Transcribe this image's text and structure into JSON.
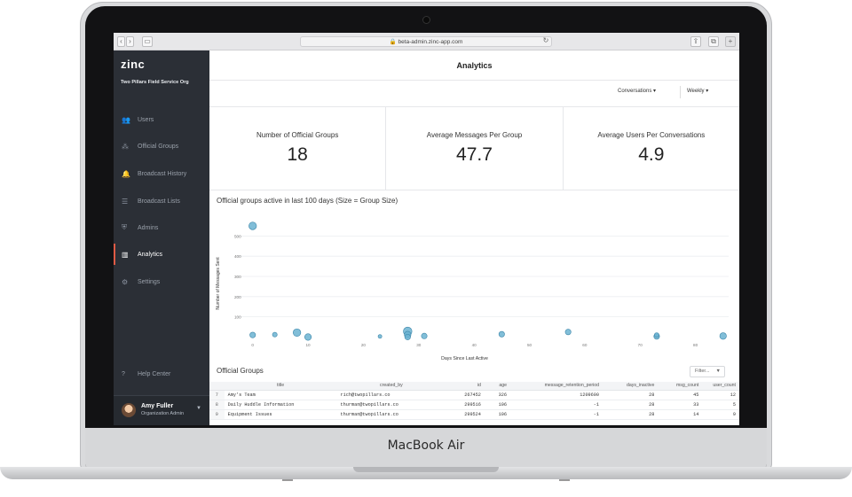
{
  "browser": {
    "url": "beta-admin.zinc-app.com"
  },
  "sidebar": {
    "logo": "zinc",
    "org": "Two Pillars Field Service Org",
    "items": [
      {
        "label": "Users",
        "icon": "users-icon",
        "active": false
      },
      {
        "label": "Official Groups",
        "icon": "groups-icon",
        "active": false
      },
      {
        "label": "Broadcast History",
        "icon": "bell-icon",
        "active": false
      },
      {
        "label": "Broadcast Lists",
        "icon": "list-icon",
        "active": false
      },
      {
        "label": "Admins",
        "icon": "shield-icon",
        "active": false
      },
      {
        "label": "Analytics",
        "icon": "chart-icon",
        "active": true
      },
      {
        "label": "Settings",
        "icon": "gear-icon",
        "active": false
      }
    ],
    "help": "Help Center",
    "user": {
      "name": "Amy Fuller",
      "role": "Organization Admin"
    }
  },
  "page": {
    "title": "Analytics",
    "filters": {
      "type": "Conversations",
      "period": "Weekly"
    }
  },
  "kpis": [
    {
      "label": "Number of Official Groups",
      "value": "18"
    },
    {
      "label": "Average Messages Per Group",
      "value": "47.7"
    },
    {
      "label": "Average Users Per Conversations",
      "value": "4.9"
    }
  ],
  "chart_section": {
    "title": "Official groups active in last 100 days (Size = Group Size)"
  },
  "chart_data": {
    "type": "scatter",
    "xlabel": "Days Since Last Active",
    "ylabel": "Number of Messages Sent",
    "xlim": [
      -3,
      86
    ],
    "ylim": [
      -20,
      620
    ],
    "xticks": [
      0,
      10,
      20,
      30,
      40,
      50,
      60,
      70,
      80
    ],
    "yticks": [
      100,
      200,
      300,
      400,
      500
    ],
    "grid": true,
    "points": [
      {
        "x": 0,
        "y": 550,
        "size": 6
      },
      {
        "x": 0,
        "y": 10,
        "size": 4
      },
      {
        "x": 4,
        "y": 12,
        "size": 3
      },
      {
        "x": 8,
        "y": 22,
        "size": 6
      },
      {
        "x": 10,
        "y": 0,
        "size": 5
      },
      {
        "x": 23,
        "y": 3,
        "size": 2
      },
      {
        "x": 28,
        "y": 28,
        "size": 7
      },
      {
        "x": 28,
        "y": 12,
        "size": 5
      },
      {
        "x": 28,
        "y": 0,
        "size": 4
      },
      {
        "x": 31,
        "y": 5,
        "size": 4
      },
      {
        "x": 45,
        "y": 14,
        "size": 4
      },
      {
        "x": 57,
        "y": 25,
        "size": 4
      },
      {
        "x": 73,
        "y": 3,
        "size": 4
      },
      {
        "x": 73,
        "y": 10,
        "size": 3
      },
      {
        "x": 85,
        "y": 5,
        "size": 5
      }
    ]
  },
  "groups_table": {
    "title": "Official Groups",
    "filter_placeholder": "Filter...",
    "columns": [
      "title",
      "created_by",
      "id",
      "age",
      "message_retention_period",
      "days_inactive",
      "msg_count",
      "user_count"
    ],
    "rows": [
      {
        "index": "7",
        "cells": [
          "Amy's Team",
          "rich@twopillars.co",
          "267452",
          "326",
          "1209600",
          "28",
          "45",
          "12"
        ]
      },
      {
        "index": "8",
        "cells": [
          "Daily Huddle Information",
          "thurman@twopillars.co",
          "299516",
          "106",
          "-1",
          "28",
          "33",
          "5"
        ]
      },
      {
        "index": "9",
        "cells": [
          "Equipment Issues",
          "thurman@twopillars.co",
          "299524",
          "106",
          "-1",
          "28",
          "14",
          "9"
        ]
      }
    ]
  },
  "device": {
    "brand": "MacBook Air"
  },
  "colors": {
    "accent": "#e05a45",
    "sidebar": "#2b2f36",
    "bubble": "#6bb3d1",
    "bubble_stroke": "#3d86a9"
  }
}
